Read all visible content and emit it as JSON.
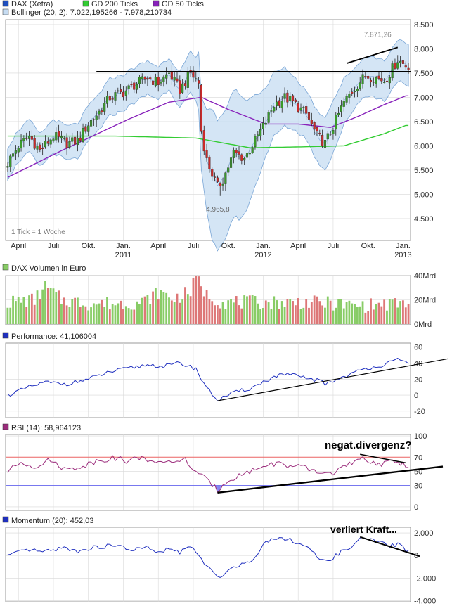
{
  "colors": {
    "price_up": "#3a9a2a",
    "price_down": "#cc2a2a",
    "gd200": "#33cc33",
    "gd50": "#8822bb",
    "bollinger_fill": "#c6dcf2",
    "bollinger_line": "#7aa6d6",
    "grid": "#d8d8d8",
    "panel_border": "#999999",
    "line_blue": "#1f2fbf",
    "rsi_line": "#9b2c7c",
    "rsi_upper": "#ee6666",
    "rsi_lower": "#6666ee",
    "annotation": "#000000",
    "vol_green": "#88cc66",
    "vol_red": "#dd7777"
  },
  "chart_data": [
    {
      "type": "candlestick",
      "legend": [
        {
          "label": "DAX (Xetra)",
          "color": "#1f4fbf"
        },
        {
          "label": "GD 200 Ticks",
          "color": "#33cc33"
        },
        {
          "label": "GD 50 Ticks",
          "color": "#8822bb"
        }
      ],
      "bollinger_label": "Bollinger (20, 2): 7.022,195266 - 7.978,210734",
      "note": "1 Tick = 1 Woche",
      "y_ticks": [
        "8.500",
        "8.000",
        "7.500",
        "7.000",
        "6.500",
        "6.000",
        "5.500",
        "5.000",
        "4.500"
      ],
      "y_tick_values": [
        8500,
        8000,
        7500,
        7000,
        6500,
        6000,
        5500,
        5000,
        4500
      ],
      "ylim": [
        4050,
        8600
      ],
      "x_month_labels": [
        "April",
        "Juli",
        "Okt.",
        "Jan.",
        "April",
        "Juli",
        "Okt.",
        "Jan.",
        "April",
        "Juli",
        "Okt.",
        "Jan."
      ],
      "x_month_weeks": [
        4,
        17,
        30,
        43,
        56,
        69,
        82,
        95,
        108,
        121,
        134,
        147
      ],
      "x_year_labels": [
        "2011",
        "2012",
        "2013"
      ],
      "x_year_weeks": [
        43,
        95,
        147
      ],
      "annotations": {
        "high": "7.871,26",
        "low": "4.965,8"
      },
      "high_week": 145,
      "low_week": 79,
      "price_anchors": [
        [
          0,
          5650
        ],
        [
          4,
          6000
        ],
        [
          8,
          6200
        ],
        [
          12,
          5900
        ],
        [
          17,
          6200
        ],
        [
          22,
          6050
        ],
        [
          26,
          6100
        ],
        [
          30,
          6450
        ],
        [
          34,
          6700
        ],
        [
          38,
          7000
        ],
        [
          43,
          7100
        ],
        [
          47,
          7250
        ],
        [
          52,
          7400
        ],
        [
          56,
          7300
        ],
        [
          60,
          7500
        ],
        [
          64,
          7150
        ],
        [
          68,
          7500
        ],
        [
          71,
          7300
        ],
        [
          72,
          6300
        ],
        [
          74,
          5700
        ],
        [
          78,
          5150
        ],
        [
          80,
          5300
        ],
        [
          84,
          5850
        ],
        [
          88,
          5750
        ],
        [
          92,
          6100
        ],
        [
          96,
          6500
        ],
        [
          99,
          6850
        ],
        [
          103,
          7000
        ],
        [
          106,
          6900
        ],
        [
          111,
          6650
        ],
        [
          115,
          6200
        ],
        [
          118,
          6050
        ],
        [
          121,
          6400
        ],
        [
          125,
          6900
        ],
        [
          129,
          7200
        ],
        [
          133,
          7450
        ],
        [
          137,
          7400
        ],
        [
          140,
          7350
        ],
        [
          142,
          7500
        ],
        [
          145,
          7780
        ],
        [
          148,
          7650
        ]
      ],
      "gd200_anchors": [
        [
          0,
          6200
        ],
        [
          40,
          6200
        ],
        [
          70,
          6160
        ],
        [
          90,
          5960
        ],
        [
          110,
          5980
        ],
        [
          125,
          6000
        ],
        [
          140,
          6250
        ],
        [
          148,
          6420
        ]
      ],
      "gd50_anchors": [
        [
          0,
          5350
        ],
        [
          20,
          5900
        ],
        [
          45,
          6550
        ],
        [
          60,
          6900
        ],
        [
          72,
          7000
        ],
        [
          82,
          6750
        ],
        [
          96,
          6450
        ],
        [
          108,
          6450
        ],
        [
          120,
          6380
        ],
        [
          130,
          6600
        ],
        [
          140,
          6850
        ],
        [
          148,
          7030
        ]
      ],
      "boll_width_anchors": [
        [
          0,
          320
        ],
        [
          40,
          380
        ],
        [
          60,
          320
        ],
        [
          70,
          450
        ],
        [
          76,
          1350
        ],
        [
          86,
          1300
        ],
        [
          96,
          700
        ],
        [
          110,
          500
        ],
        [
          120,
          550
        ],
        [
          130,
          400
        ],
        [
          148,
          430
        ]
      ],
      "overlay_lines": [
        {
          "w1": 33,
          "v1": 7530,
          "w2": 150,
          "v2": 7530
        },
        {
          "w1": 126,
          "v1": 7700,
          "w2": 145,
          "v2": 8030
        }
      ]
    },
    {
      "type": "bar",
      "legend": "DAX Volumen in Euro",
      "y_ticks": [
        "40Mrd",
        "20Mrd",
        "0Mrd"
      ],
      "y_tick_values": [
        40,
        20,
        0
      ],
      "ylim": [
        0,
        40
      ],
      "volume_anchors": [
        [
          0,
          18
        ],
        [
          10,
          20
        ],
        [
          14,
          31
        ],
        [
          20,
          20
        ],
        [
          30,
          17
        ],
        [
          40,
          17
        ],
        [
          50,
          18
        ],
        [
          56,
          26
        ],
        [
          62,
          21
        ],
        [
          68,
          27
        ],
        [
          70,
          38
        ],
        [
          74,
          24
        ],
        [
          80,
          18
        ],
        [
          90,
          18
        ],
        [
          100,
          18
        ],
        [
          110,
          18
        ],
        [
          120,
          17
        ],
        [
          130,
          15
        ],
        [
          140,
          16
        ],
        [
          148,
          17
        ]
      ]
    },
    {
      "type": "line",
      "legend": "Performance: 41,106004",
      "y_ticks": [
        "60",
        "40",
        "20",
        "0",
        "-20"
      ],
      "y_tick_values": [
        60,
        40,
        20,
        0,
        -20
      ],
      "ylim": [
        -28,
        65
      ],
      "perf_anchors": [
        [
          0,
          0
        ],
        [
          8,
          10
        ],
        [
          14,
          16
        ],
        [
          22,
          14
        ],
        [
          30,
          20
        ],
        [
          38,
          29
        ],
        [
          46,
          34
        ],
        [
          52,
          38
        ],
        [
          58,
          36
        ],
        [
          64,
          40
        ],
        [
          70,
          33
        ],
        [
          72,
          20
        ],
        [
          75,
          5
        ],
        [
          78,
          -6
        ],
        [
          82,
          0
        ],
        [
          86,
          5
        ],
        [
          90,
          8
        ],
        [
          96,
          18
        ],
        [
          100,
          24
        ],
        [
          104,
          26
        ],
        [
          110,
          22
        ],
        [
          116,
          18
        ],
        [
          118,
          14
        ],
        [
          122,
          19
        ],
        [
          128,
          27
        ],
        [
          134,
          34
        ],
        [
          140,
          38
        ],
        [
          145,
          44
        ],
        [
          148,
          41
        ]
      ],
      "trendline": {
        "w1": 78,
        "v1": -7,
        "w2": 163,
        "v2": 45
      }
    },
    {
      "type": "line",
      "legend": "RSI (14): 58,964123",
      "y_ticks": [
        "100",
        "70",
        "50",
        "30",
        "0"
      ],
      "y_tick_values": [
        100,
        70,
        50,
        30,
        0
      ],
      "ylim": [
        -5,
        102
      ],
      "bands": [
        70,
        30
      ],
      "rsi_anchors": [
        [
          0,
          50
        ],
        [
          5,
          63
        ],
        [
          10,
          57
        ],
        [
          16,
          66
        ],
        [
          22,
          52
        ],
        [
          28,
          58
        ],
        [
          34,
          66
        ],
        [
          40,
          69
        ],
        [
          45,
          64
        ],
        [
          50,
          72
        ],
        [
          55,
          59
        ],
        [
          60,
          66
        ],
        [
          64,
          62
        ],
        [
          66,
          67
        ],
        [
          68,
          57
        ],
        [
          70,
          50
        ],
        [
          72,
          44
        ],
        [
          75,
          34
        ],
        [
          78,
          24
        ],
        [
          82,
          38
        ],
        [
          88,
          47
        ],
        [
          94,
          56
        ],
        [
          100,
          62
        ],
        [
          104,
          58
        ],
        [
          110,
          55
        ],
        [
          116,
          48
        ],
        [
          120,
          47
        ],
        [
          126,
          58
        ],
        [
          132,
          67
        ],
        [
          136,
          63
        ],
        [
          140,
          60
        ],
        [
          144,
          65
        ],
        [
          148,
          59
        ]
      ],
      "annotation": "negat.divergenz?",
      "trendlines": [
        {
          "w1": 78,
          "v1": 20,
          "w2": 162,
          "v2": 57
        },
        {
          "w1": 131,
          "v1": 74,
          "w2": 148,
          "v2": 62
        }
      ]
    },
    {
      "type": "line",
      "legend": "Momentum (20): 452,03",
      "y_ticks": [
        "2.000",
        "0",
        "-2.000",
        "-4.000"
      ],
      "y_tick_values": [
        2000,
        0,
        -2000,
        -4000
      ],
      "ylim": [
        -4100,
        2500
      ],
      "mom_anchors": [
        [
          0,
          0
        ],
        [
          8,
          500
        ],
        [
          14,
          300
        ],
        [
          20,
          700
        ],
        [
          26,
          400
        ],
        [
          32,
          700
        ],
        [
          40,
          900
        ],
        [
          46,
          500
        ],
        [
          52,
          700
        ],
        [
          56,
          200
        ],
        [
          60,
          600
        ],
        [
          64,
          300
        ],
        [
          68,
          800
        ],
        [
          72,
          -300
        ],
        [
          75,
          -1200
        ],
        [
          78,
          -2000
        ],
        [
          82,
          -1300
        ],
        [
          86,
          -800
        ],
        [
          90,
          -600
        ],
        [
          96,
          1200
        ],
        [
          100,
          1600
        ],
        [
          104,
          1500
        ],
        [
          108,
          1100
        ],
        [
          112,
          700
        ],
        [
          116,
          -500
        ],
        [
          120,
          -300
        ],
        [
          124,
          300
        ],
        [
          128,
          800
        ],
        [
          132,
          1600
        ],
        [
          136,
          1300
        ],
        [
          142,
          900
        ],
        [
          146,
          1000
        ],
        [
          148,
          450
        ]
      ],
      "annotation": "verliert Kraft...",
      "trendline": {
        "w1": 131,
        "v1": 1650,
        "w2": 151,
        "v2": 50
      }
    }
  ]
}
